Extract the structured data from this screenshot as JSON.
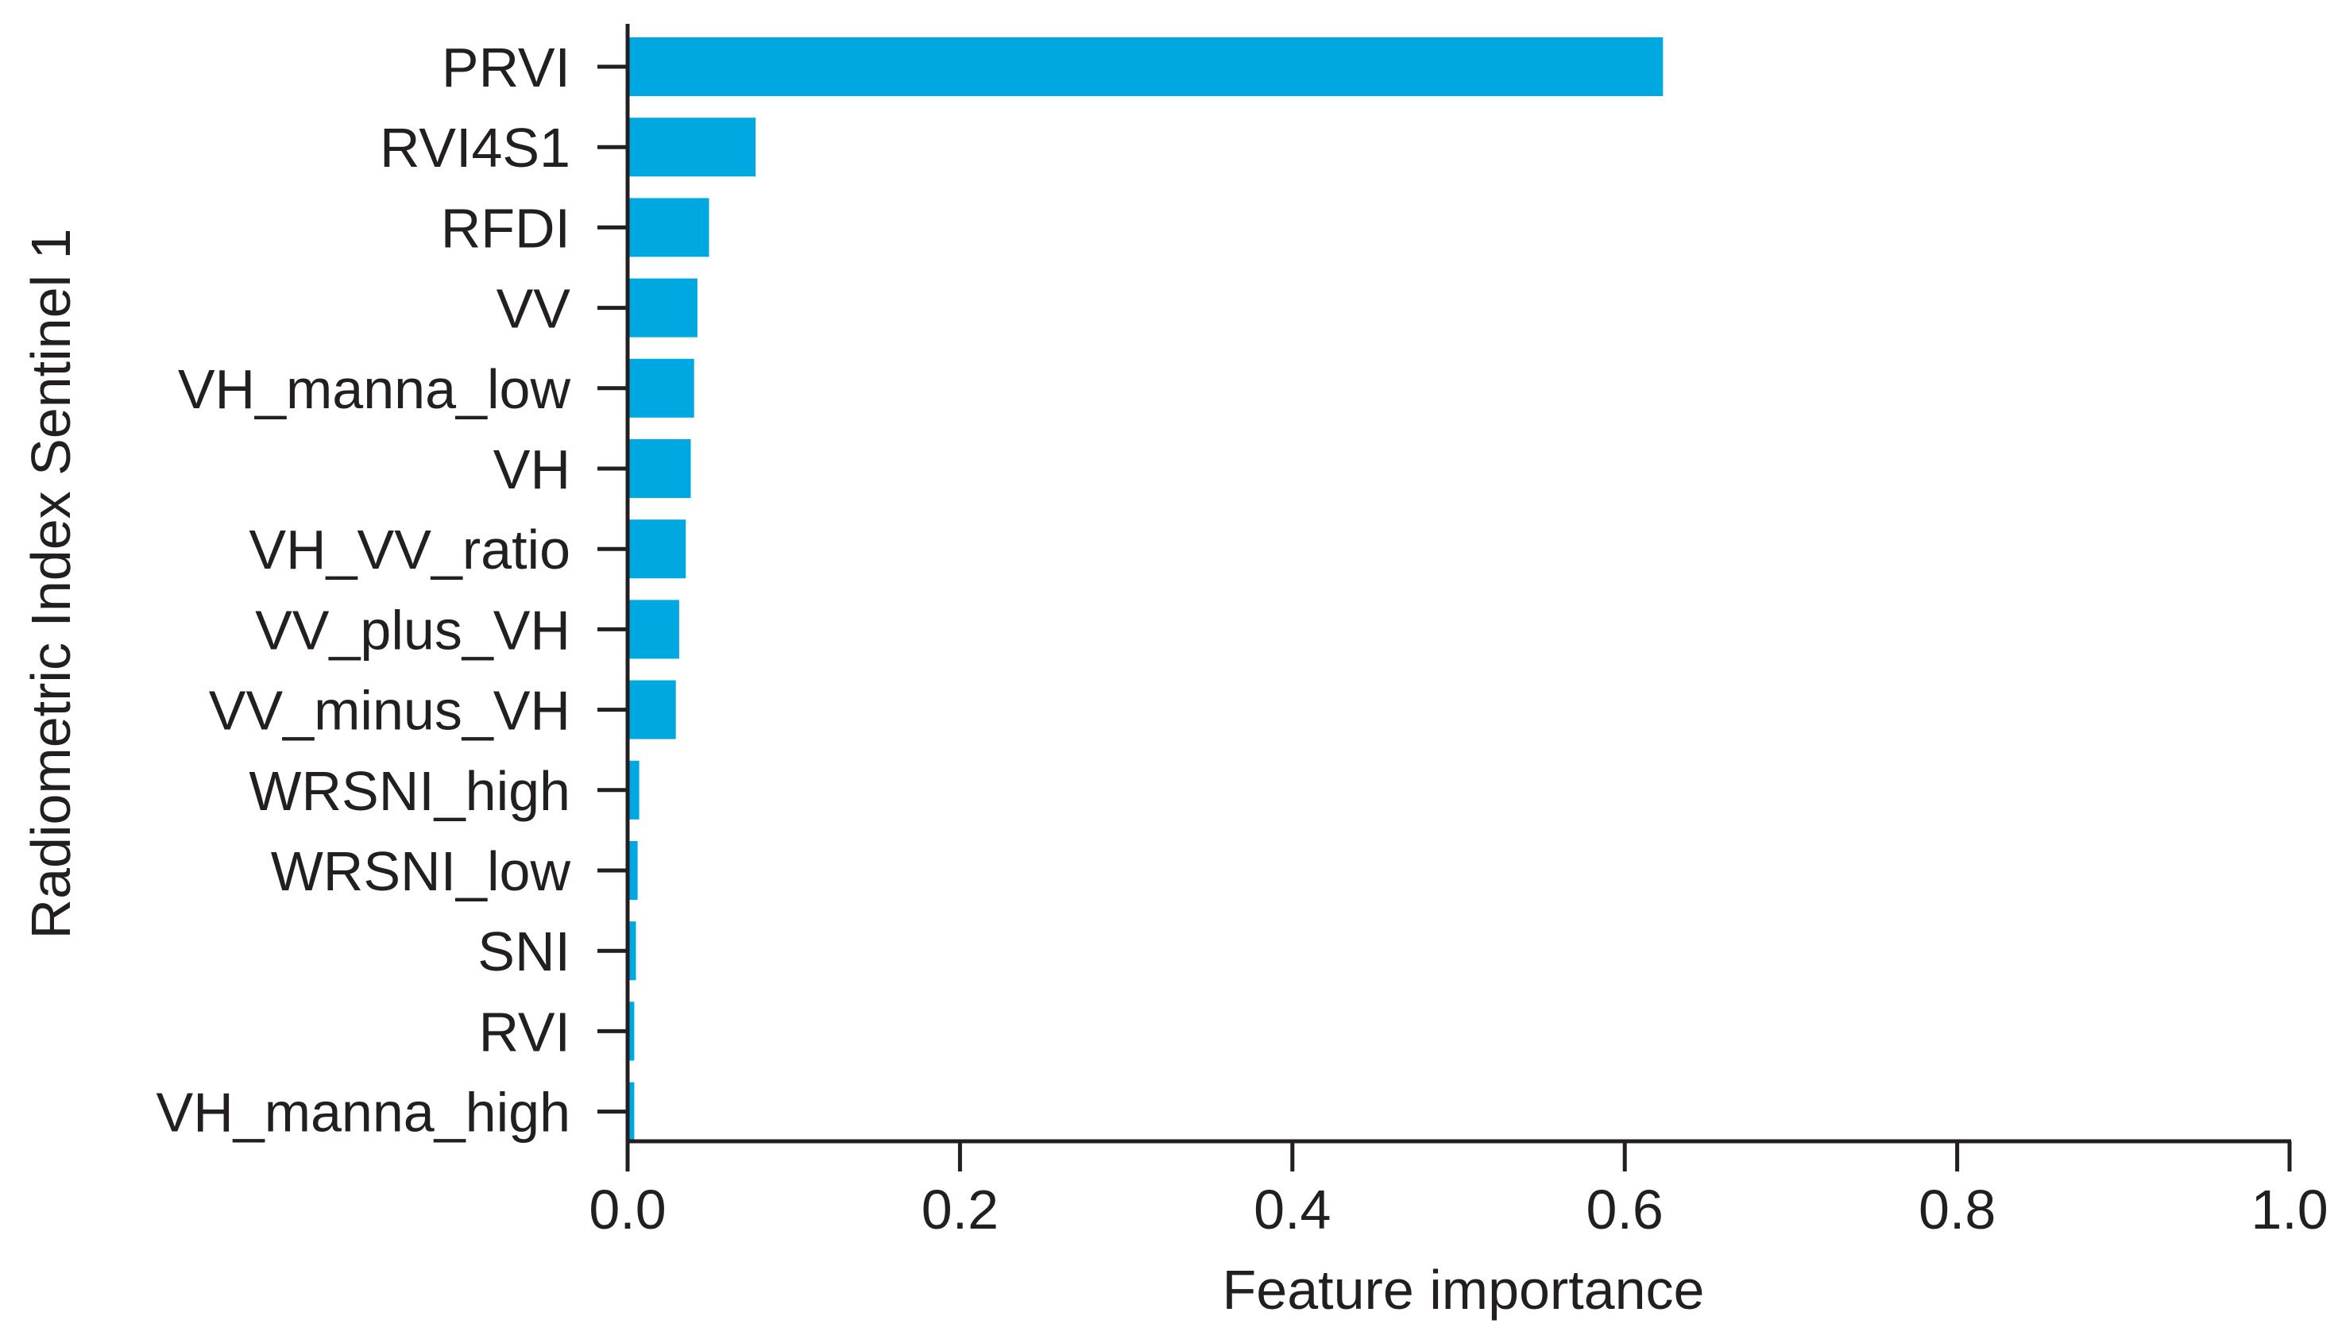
{
  "chart_data": {
    "type": "bar",
    "orientation": "horizontal",
    "categories": [
      "PRVI",
      "RVI4S1",
      "RFDI",
      "VV",
      "VH_manna_low",
      "VH",
      "VH_VV_ratio",
      "VV_plus_VH",
      "VV_minus_VH",
      "WRSNI_high",
      "WRSNI_low",
      "SNI",
      "RVI",
      "VH_manna_high"
    ],
    "values": [
      0.623,
      0.077,
      0.049,
      0.042,
      0.04,
      0.038,
      0.035,
      0.031,
      0.029,
      0.007,
      0.006,
      0.005,
      0.004,
      0.004
    ],
    "xlabel": "Feature importance",
    "ylabel": "Radiometric Index Sentinel 1",
    "xlim": [
      0,
      1.0
    ],
    "xticks": [
      "0.0",
      "0.2",
      "0.4",
      "0.6",
      "0.8",
      "1.0"
    ],
    "bar_color": "#00a8e1",
    "grid": false,
    "legend": "none"
  }
}
